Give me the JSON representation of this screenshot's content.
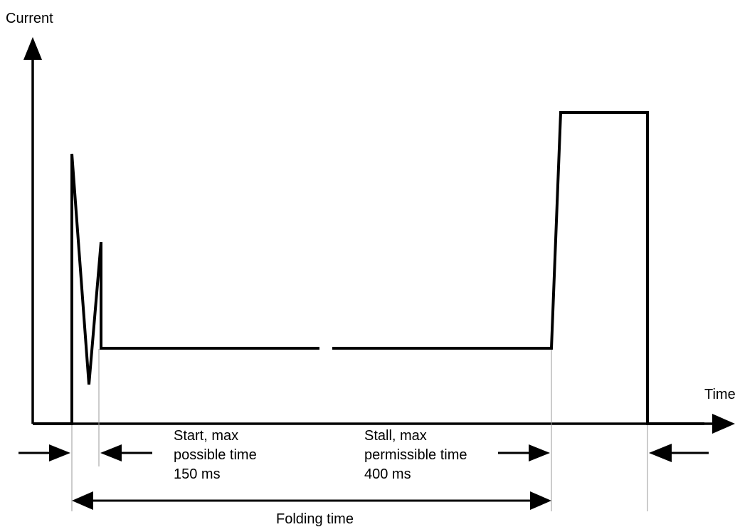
{
  "axes": {
    "y_label": "Current",
    "x_label": "Time"
  },
  "annotations": {
    "start_line1": "Start, max",
    "start_line2": "possible time",
    "start_line3": "150 ms",
    "stall_line1": "Stall, max",
    "stall_line2": "permissible time",
    "stall_line3": "400 ms",
    "folding_time": "Folding time"
  },
  "colors": {
    "line": "#000000",
    "guide": "#9a9a9a",
    "background": "#ffffff"
  }
}
